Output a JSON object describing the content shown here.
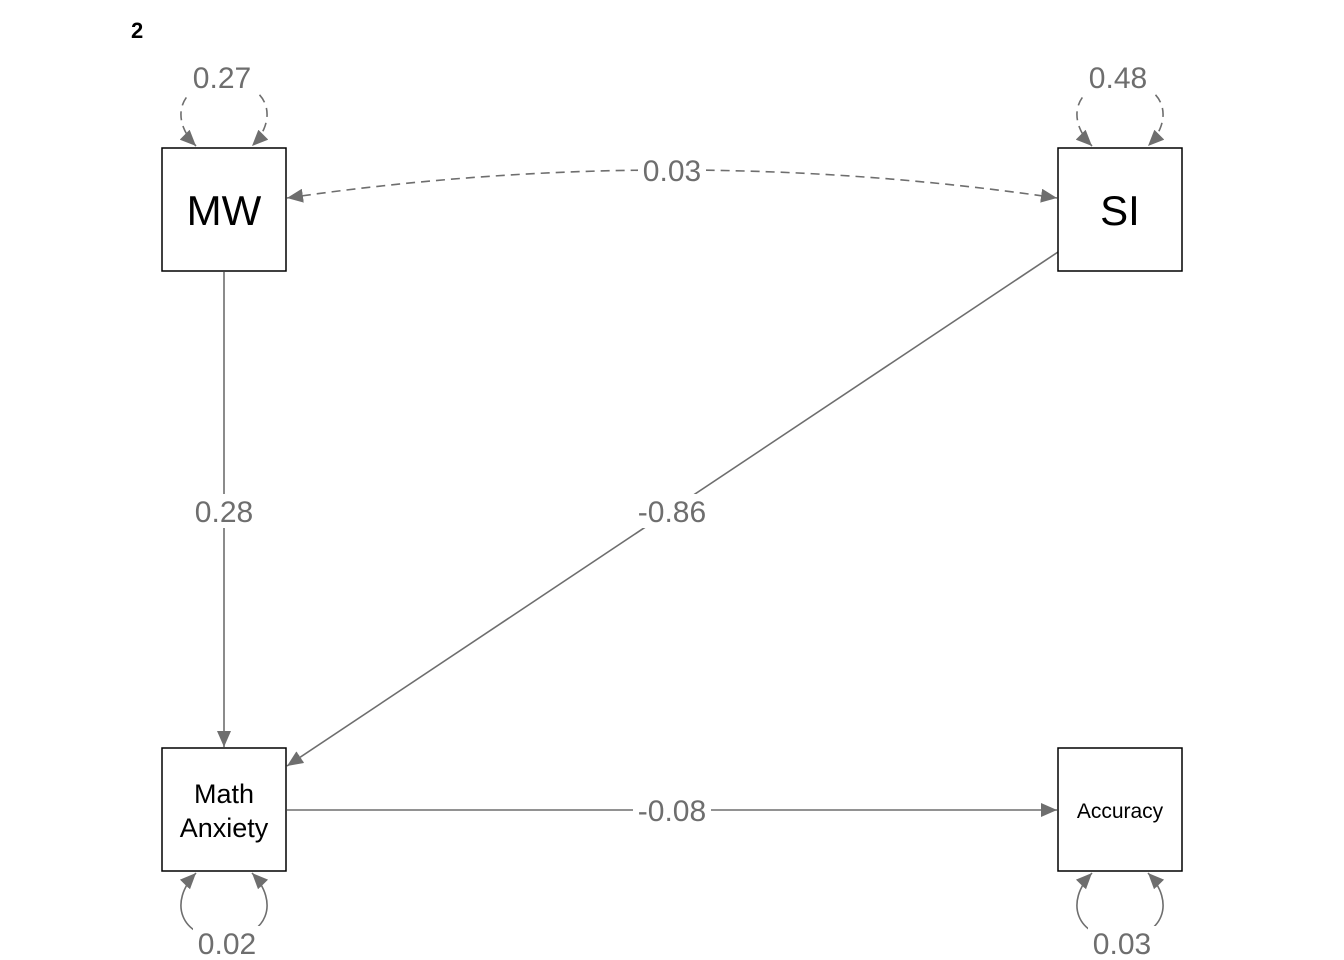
{
  "panel_label": "2",
  "nodes": {
    "mw": {
      "label": "MW"
    },
    "si": {
      "label": "SI"
    },
    "math_anxiety": {
      "label_line1": "Math",
      "label_line2": "Anxiety"
    },
    "accuracy": {
      "label": "Accuracy"
    }
  },
  "paths": {
    "mw_to_math_anxiety": "0.28",
    "si_to_math_anxiety": "-0.86",
    "math_anxiety_to_accuracy": "-0.08",
    "mw_si_covariance": "0.03"
  },
  "residual_variances": {
    "mw": "0.27",
    "si": "0.48",
    "math_anxiety": "0.02",
    "accuracy": "0.03"
  },
  "colors": {
    "edge": "#6e6e6e",
    "node_border": "#000000",
    "label": "#6e6e6e"
  }
}
